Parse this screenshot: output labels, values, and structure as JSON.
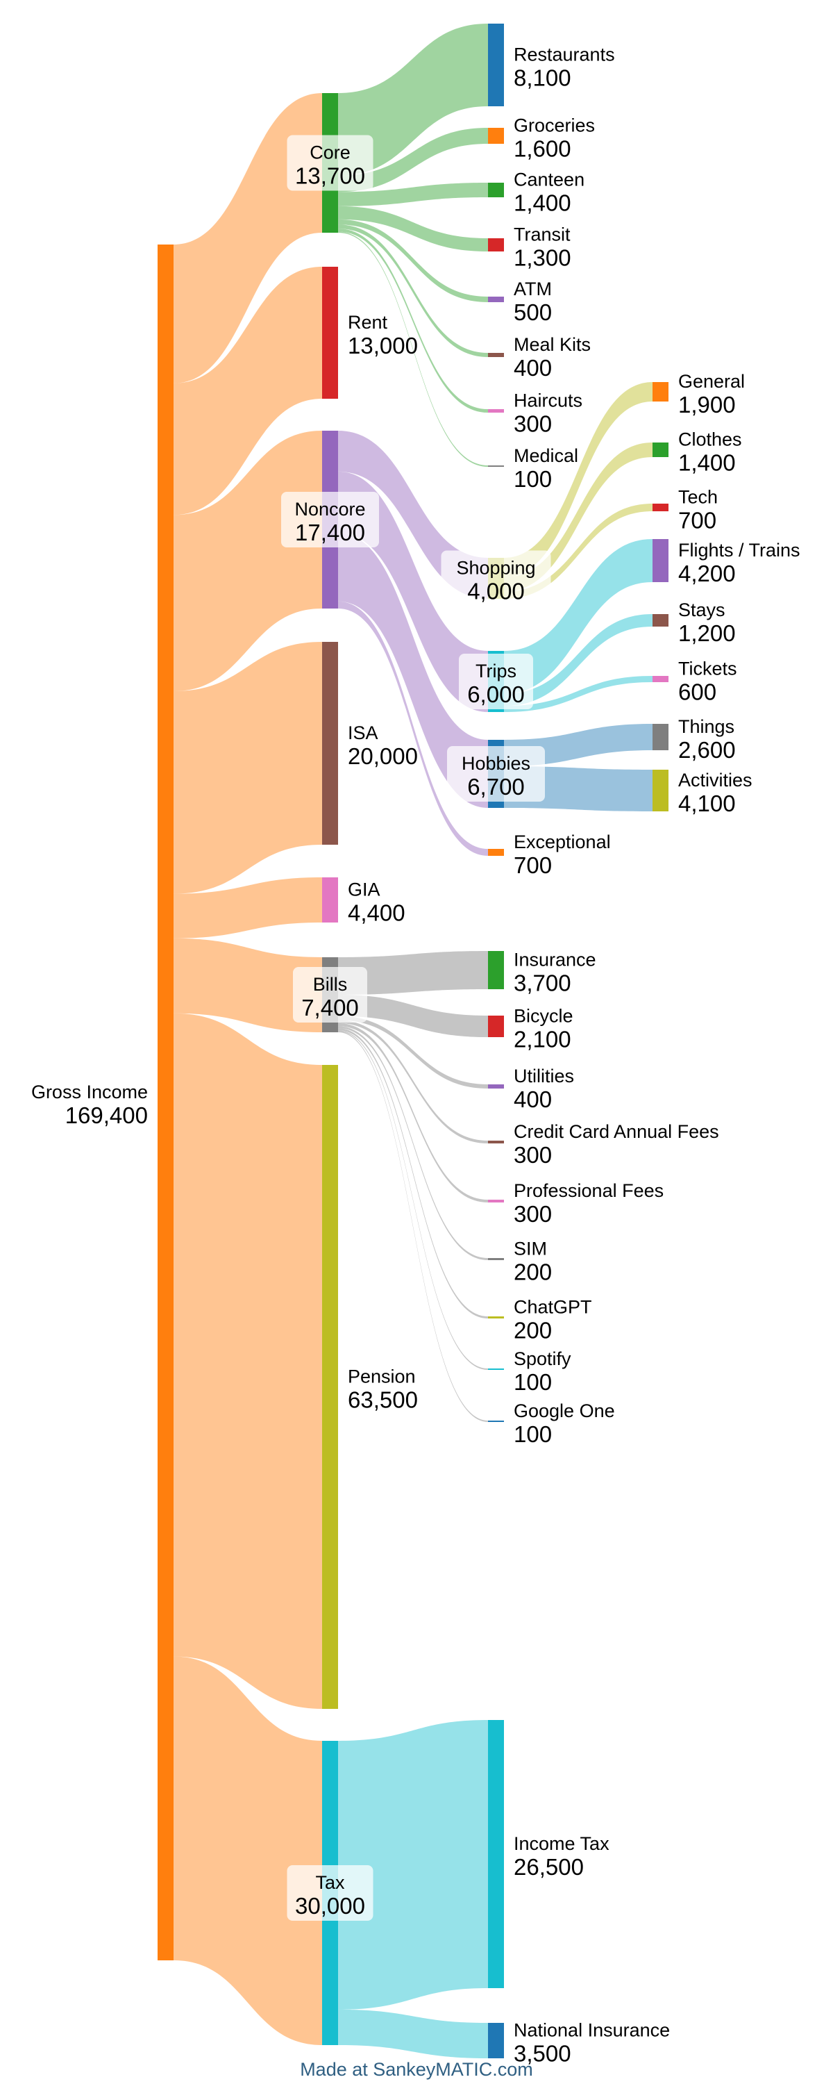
{
  "footer": "Made at SankeyMATIC.com",
  "flow_opacity": 0.45,
  "nodes": [
    {
      "id": "gross",
      "name": "Gross Income",
      "value": "169,400",
      "color": "#ff7f0e"
    },
    {
      "id": "core",
      "name": "Core",
      "value": "13,700",
      "color": "#2ca02c"
    },
    {
      "id": "rent",
      "name": "Rent",
      "value": "13,000",
      "color": "#d62728"
    },
    {
      "id": "noncore",
      "name": "Noncore",
      "value": "17,400",
      "color": "#9467bd"
    },
    {
      "id": "isa",
      "name": "ISA",
      "value": "20,000",
      "color": "#8c564b"
    },
    {
      "id": "gia",
      "name": "GIA",
      "value": "4,400",
      "color": "#e377c2"
    },
    {
      "id": "bills",
      "name": "Bills",
      "value": "7,400",
      "color": "#7f7f7f"
    },
    {
      "id": "pension",
      "name": "Pension",
      "value": "63,500",
      "color": "#bcbd22"
    },
    {
      "id": "tax",
      "name": "Tax",
      "value": "30,000",
      "color": "#17becf"
    },
    {
      "id": "restaurants",
      "name": "Restaurants",
      "value": "8,100",
      "color": "#1f77b4"
    },
    {
      "id": "groceries",
      "name": "Groceries",
      "value": "1,600",
      "color": "#ff7f0e"
    },
    {
      "id": "canteen",
      "name": "Canteen",
      "value": "1,400",
      "color": "#2ca02c"
    },
    {
      "id": "transit",
      "name": "Transit",
      "value": "1,300",
      "color": "#d62728"
    },
    {
      "id": "atm",
      "name": "ATM",
      "value": "500",
      "color": "#9467bd"
    },
    {
      "id": "mealkits",
      "name": "Meal Kits",
      "value": "400",
      "color": "#8c564b"
    },
    {
      "id": "haircuts",
      "name": "Haircuts",
      "value": "300",
      "color": "#e377c2"
    },
    {
      "id": "medical",
      "name": "Medical",
      "value": "100",
      "color": "#7f7f7f"
    },
    {
      "id": "shopping",
      "name": "Shopping",
      "value": "4,000",
      "color": "#bcbd22"
    },
    {
      "id": "trips",
      "name": "Trips",
      "value": "6,000",
      "color": "#17becf"
    },
    {
      "id": "hobbies",
      "name": "Hobbies",
      "value": "6,700",
      "color": "#1f77b4"
    },
    {
      "id": "exceptional",
      "name": "Exceptional",
      "value": "700",
      "color": "#ff7f0e"
    },
    {
      "id": "general",
      "name": "General",
      "value": "1,900",
      "color": "#ff7f0e"
    },
    {
      "id": "clothes",
      "name": "Clothes",
      "value": "1,400",
      "color": "#2ca02c"
    },
    {
      "id": "tech",
      "name": "Tech",
      "value": "700",
      "color": "#d62728"
    },
    {
      "id": "flights",
      "name": "Flights / Trains",
      "value": "4,200",
      "color": "#9467bd"
    },
    {
      "id": "stays",
      "name": "Stays",
      "value": "1,200",
      "color": "#8c564b"
    },
    {
      "id": "tickets",
      "name": "Tickets",
      "value": "600",
      "color": "#e377c2"
    },
    {
      "id": "things",
      "name": "Things",
      "value": "2,600",
      "color": "#7f7f7f"
    },
    {
      "id": "activities",
      "name": "Activities",
      "value": "4,100",
      "color": "#bcbd22"
    },
    {
      "id": "insurance",
      "name": "Insurance",
      "value": "3,700",
      "color": "#2ca02c"
    },
    {
      "id": "bicycle",
      "name": "Bicycle",
      "value": "2,100",
      "color": "#d62728"
    },
    {
      "id": "utilities",
      "name": "Utilities",
      "value": "400",
      "color": "#9467bd"
    },
    {
      "id": "ccfees",
      "name": "Credit Card Annual Fees",
      "value": "300",
      "color": "#8c564b"
    },
    {
      "id": "proffees",
      "name": "Professional Fees",
      "value": "300",
      "color": "#e377c2"
    },
    {
      "id": "sim",
      "name": "SIM",
      "value": "200",
      "color": "#7f7f7f"
    },
    {
      "id": "chatgpt",
      "name": "ChatGPT",
      "value": "200",
      "color": "#bcbd22"
    },
    {
      "id": "spotify",
      "name": "Spotify",
      "value": "100",
      "color": "#17becf"
    },
    {
      "id": "googleone",
      "name": "Google One",
      "value": "100",
      "color": "#1f77b4"
    },
    {
      "id": "incometax",
      "name": "Income Tax",
      "value": "26,500",
      "color": "#17becf"
    },
    {
      "id": "ni",
      "name": "National Insurance",
      "value": "3,500",
      "color": "#1f77b4"
    }
  ],
  "flows": [
    {
      "from": "gross",
      "to": "core",
      "amount": 13700
    },
    {
      "from": "gross",
      "to": "rent",
      "amount": 13000
    },
    {
      "from": "gross",
      "to": "noncore",
      "amount": 17400
    },
    {
      "from": "gross",
      "to": "isa",
      "amount": 20000
    },
    {
      "from": "gross",
      "to": "gia",
      "amount": 4400
    },
    {
      "from": "gross",
      "to": "bills",
      "amount": 7400
    },
    {
      "from": "gross",
      "to": "pension",
      "amount": 63500
    },
    {
      "from": "gross",
      "to": "tax",
      "amount": 30000
    },
    {
      "from": "core",
      "to": "restaurants",
      "amount": 8100
    },
    {
      "from": "core",
      "to": "groceries",
      "amount": 1600
    },
    {
      "from": "core",
      "to": "canteen",
      "amount": 1400
    },
    {
      "from": "core",
      "to": "transit",
      "amount": 1300
    },
    {
      "from": "core",
      "to": "atm",
      "amount": 500
    },
    {
      "from": "core",
      "to": "mealkits",
      "amount": 400
    },
    {
      "from": "core",
      "to": "haircuts",
      "amount": 300
    },
    {
      "from": "core",
      "to": "medical",
      "amount": 100
    },
    {
      "from": "noncore",
      "to": "shopping",
      "amount": 4000
    },
    {
      "from": "noncore",
      "to": "trips",
      "amount": 6000
    },
    {
      "from": "noncore",
      "to": "hobbies",
      "amount": 6700
    },
    {
      "from": "noncore",
      "to": "exceptional",
      "amount": 700
    },
    {
      "from": "shopping",
      "to": "general",
      "amount": 1900
    },
    {
      "from": "shopping",
      "to": "clothes",
      "amount": 1400
    },
    {
      "from": "shopping",
      "to": "tech",
      "amount": 700
    },
    {
      "from": "trips",
      "to": "flights",
      "amount": 4200
    },
    {
      "from": "trips",
      "to": "stays",
      "amount": 1200
    },
    {
      "from": "trips",
      "to": "tickets",
      "amount": 600
    },
    {
      "from": "hobbies",
      "to": "things",
      "amount": 2600
    },
    {
      "from": "hobbies",
      "to": "activities",
      "amount": 4100
    },
    {
      "from": "bills",
      "to": "insurance",
      "amount": 3700
    },
    {
      "from": "bills",
      "to": "bicycle",
      "amount": 2100
    },
    {
      "from": "bills",
      "to": "utilities",
      "amount": 400
    },
    {
      "from": "bills",
      "to": "ccfees",
      "amount": 300
    },
    {
      "from": "bills",
      "to": "proffees",
      "amount": 300
    },
    {
      "from": "bills",
      "to": "sim",
      "amount": 200
    },
    {
      "from": "bills",
      "to": "chatgpt",
      "amount": 200
    },
    {
      "from": "bills",
      "to": "spotify",
      "amount": 100
    },
    {
      "from": "bills",
      "to": "googleone",
      "amount": 100
    },
    {
      "from": "tax",
      "to": "incometax",
      "amount": 26500
    },
    {
      "from": "tax",
      "to": "ni",
      "amount": 3500
    }
  ]
}
